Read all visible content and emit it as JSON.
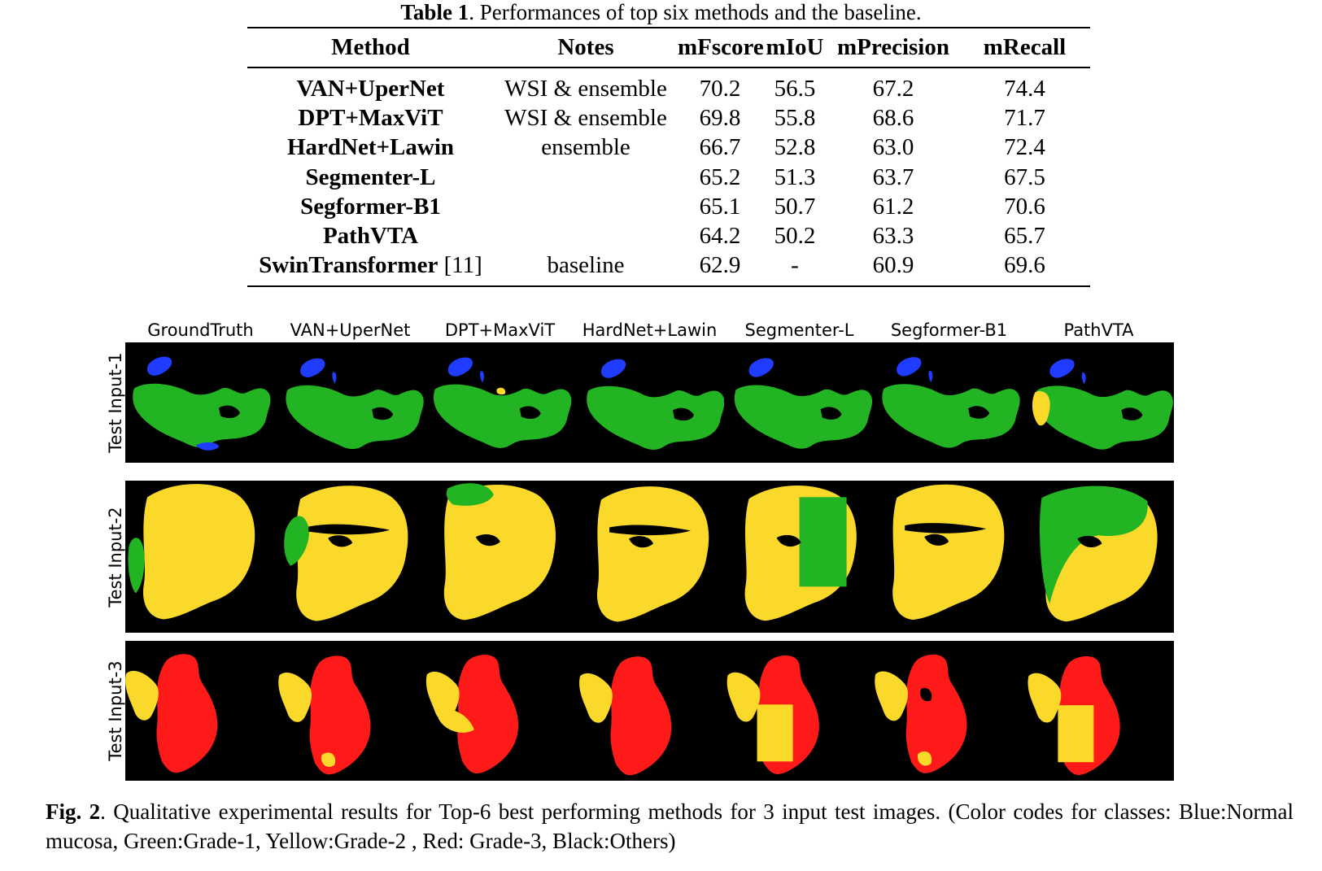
{
  "table": {
    "caption_label": "Table 1",
    "caption_text": ". Performances of top six methods and the baseline.",
    "headers": [
      "Method",
      "Notes",
      "mFscore",
      "mIoU",
      "mPrecision",
      "mRecall"
    ],
    "rows": [
      {
        "method": "VAN+UperNet",
        "ref": "",
        "notes": "WSI & ensemble",
        "mfscore": "70.2",
        "miou": "56.5",
        "mprecision": "67.2",
        "mrecall": "74.4"
      },
      {
        "method": "DPT+MaxViT",
        "ref": "",
        "notes": "WSI & ensemble",
        "mfscore": "69.8",
        "miou": "55.8",
        "mprecision": "68.6",
        "mrecall": "71.7"
      },
      {
        "method": "HardNet+Lawin",
        "ref": "",
        "notes": "ensemble",
        "mfscore": "66.7",
        "miou": "52.8",
        "mprecision": "63.0",
        "mrecall": "72.4"
      },
      {
        "method": "Segmenter-L",
        "ref": "",
        "notes": "",
        "mfscore": "65.2",
        "miou": "51.3",
        "mprecision": "63.7",
        "mrecall": "67.5"
      },
      {
        "method": "Segformer-B1",
        "ref": "",
        "notes": "",
        "mfscore": "65.1",
        "miou": "50.7",
        "mprecision": "61.2",
        "mrecall": "70.6"
      },
      {
        "method": "PathVTA",
        "ref": "",
        "notes": "",
        "mfscore": "64.2",
        "miou": "50.2",
        "mprecision": "63.3",
        "mrecall": "65.7"
      },
      {
        "method": "SwinTransformer",
        "ref": " [11]",
        "notes": "baseline",
        "mfscore": "62.9",
        "miou": "-",
        "mprecision": "60.9",
        "mrecall": "69.6"
      }
    ]
  },
  "figure": {
    "column_titles": [
      "GroundTruth",
      "VAN+UperNet",
      "DPT+MaxViT",
      "HardNet+Lawin",
      "Segmenter-L",
      "Segformer-B1",
      "PathVTA"
    ],
    "row_labels": [
      "Test Input-1",
      "Test Input-2",
      "Test Input-3"
    ],
    "class_colors": {
      "normal_mucosa": "#1f3cff",
      "grade_1": "#22b422",
      "grade_2": "#fbd92a",
      "grade_3": "#ff1a1a",
      "others": "#000000"
    },
    "caption_label": "Fig. 2",
    "caption_text": ". Qualitative experimental results for Top-6 best performing methods for 3 input test images. (Color codes for classes: Blue:Normal mucosa, Green:Grade-1, Yellow:Grade-2 , Red: Grade-3, Black:Others)"
  }
}
